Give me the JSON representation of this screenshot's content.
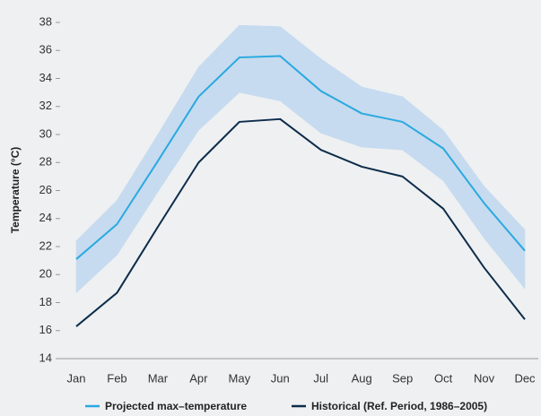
{
  "chart_data": {
    "type": "line",
    "y_label": "Temperature (°C)",
    "categories": [
      "Jan",
      "Feb",
      "Mar",
      "Apr",
      "May",
      "Jun",
      "Jul",
      "Aug",
      "Sep",
      "Oct",
      "Nov",
      "Dec"
    ],
    "series": [
      {
        "name": "Projected max–temperature",
        "color": "#2aa9e0",
        "values": [
          21.1,
          23.6,
          28.1,
          32.7,
          35.5,
          35.6,
          33.1,
          31.5,
          30.9,
          29.0,
          25.1,
          21.7
        ]
      },
      {
        "name": "Historical (Ref. Period, 1986–2005)",
        "color": "#0d2c4a",
        "values": [
          16.3,
          18.7,
          23.4,
          28.0,
          30.9,
          31.1,
          28.9,
          27.7,
          27.0,
          24.7,
          20.5,
          16.8
        ]
      }
    ],
    "band": {
      "color": "#c6dbef",
      "upper": [
        22.4,
        25.3,
        30.0,
        34.8,
        37.8,
        37.7,
        35.4,
        33.4,
        32.7,
        30.3,
        26.3,
        23.2
      ],
      "lower": [
        18.7,
        21.4,
        25.9,
        30.3,
        33.0,
        32.4,
        30.1,
        29.1,
        28.9,
        26.7,
        22.6,
        19.0
      ]
    },
    "ylim": [
      14,
      38
    ],
    "yticks": [
      14,
      16,
      18,
      20,
      22,
      24,
      26,
      28,
      30,
      32,
      34,
      36,
      38
    ],
    "grid": false,
    "legend": "bottom"
  }
}
